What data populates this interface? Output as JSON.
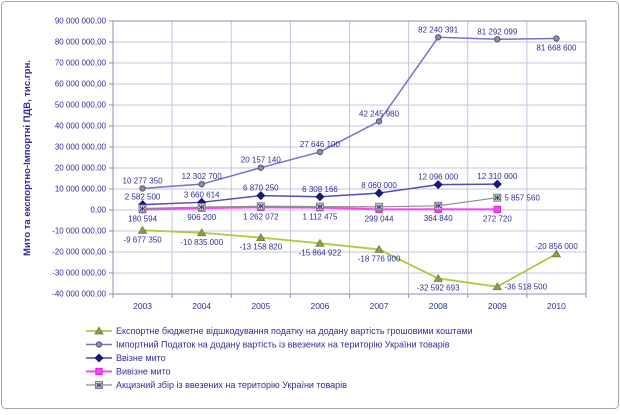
{
  "figure": {
    "background": "#ffffff",
    "border_color": "#a6a6a6"
  },
  "style": {
    "text_color": "#2e2e99",
    "grid_color": "#c3c3e1",
    "plot_border_color": "#8e8eb4",
    "tick_color": "#8e8eb4"
  },
  "chart_data": {
    "type": "line",
    "title": "",
    "xlabel": "",
    "ylabel": "Мито та експортно-Імпортні ПДВ, тис.грн.",
    "ylim": [
      -40000000,
      90000000
    ],
    "ytick_step": 10000000,
    "ytick_labels": [
      "90 000 000,00",
      "80 000 000,00",
      "70 000 000,00",
      "60 000 000,00",
      "50 000 000,00",
      "40 000 000,00",
      "30 000 000,00",
      "20 000 000,00",
      "10 000 000,00",
      "0,00",
      "-10 000 000,00",
      "-20 000 000,00",
      "-30 000 000,00",
      "-40 000 000,00"
    ],
    "grid": true,
    "legend_position": "bottom-left",
    "categories": [
      "2003",
      "2004",
      "2005",
      "2006",
      "2007",
      "2008",
      "2009",
      "2010"
    ],
    "series": [
      {
        "name": "Експортне бюджетне відшкодування податку на додану вартість грошовими коштами",
        "marker": "triangle",
        "line_color": "#a9cc3f",
        "marker_fill": "#8fa046",
        "marker_stroke": "#75833f",
        "line_width": 1.8,
        "values": [
          -9677350,
          -10835000,
          -13158820,
          -15864922,
          -18776900,
          -32592693,
          -36518500,
          -20856000
        ],
        "labels": [
          "-9 677 350",
          "-10 835 000",
          "-13 158 820",
          "-15 864 922",
          "-18 776 900",
          "-32 592 693",
          "-36 518 500",
          "-20 856 000"
        ],
        "label_pos": [
          "below",
          "below",
          "below",
          "below",
          "below",
          "below",
          "right",
          "above"
        ]
      },
      {
        "name": "Імпортний Податок на додану вартість із ввезених на територію України товарів",
        "marker": "circle",
        "line_color": "#7373cc",
        "marker_fill": "#8f8fa3",
        "marker_stroke": "#55556b",
        "line_width": 1.5,
        "values": [
          10277350,
          12302700,
          20157140,
          27646100,
          42245980,
          82240391,
          81292099,
          81668600
        ],
        "labels": [
          "10 277 350",
          "12 302 700",
          "20 157 140",
          "27 646 100",
          "42 245 980",
          "82 240 391",
          "81 292 099",
          "81 668 600"
        ],
        "label_pos": [
          "above",
          "above",
          "above",
          "above",
          "above",
          "above",
          "above",
          "below"
        ]
      },
      {
        "name": "Ввізне мито",
        "marker": "diamond",
        "line_color": "#4d4dbb",
        "marker_fill": "#1a1a80",
        "marker_stroke": "#14146a",
        "line_width": 1.5,
        "values": [
          2582500,
          3660614,
          6870250,
          6308166,
          8060000,
          12096000,
          12310000,
          null
        ],
        "labels": [
          "2 582 500",
          "3 660 614",
          "6 870 250",
          "6 308 166",
          "8 060 000",
          "12 096 000",
          "12 310 000",
          ""
        ],
        "label_pos": [
          "above",
          "above",
          "above",
          "above",
          "above",
          "above",
          "above",
          "above"
        ]
      },
      {
        "name": "Вивізне мито",
        "marker": "square",
        "line_color": "#ff40ff",
        "marker_fill": "#ff40ff",
        "marker_stroke": "#d428d4",
        "line_width": 2,
        "values": [
          180594,
          906200,
          1262072,
          1112475,
          299044,
          364840,
          272720,
          null
        ],
        "labels": [
          "180 594",
          "906 200",
          "1 262 072",
          "1 112 475",
          "299 044",
          "364 840",
          "272 720",
          ""
        ],
        "label_pos": [
          "below",
          "below",
          "below",
          "below",
          "below",
          "below",
          "below",
          "below"
        ]
      },
      {
        "name": "Акцизний збір із ввезених на територію України товарів",
        "marker": "x-square",
        "line_color": "#8c8c8c",
        "marker_fill": "#cfcfcf",
        "marker_stroke": "#808080",
        "line_width": 1.2,
        "values": [
          700000,
          1400000,
          1800000,
          1600000,
          1500000,
          2000000,
          5857560,
          null
        ],
        "labels": [
          "",
          "",
          "",
          "",
          "",
          "",
          "5 857 560",
          ""
        ],
        "label_pos": [
          "right",
          "right",
          "right",
          "right",
          "right",
          "right",
          "right",
          "right"
        ]
      }
    ]
  }
}
